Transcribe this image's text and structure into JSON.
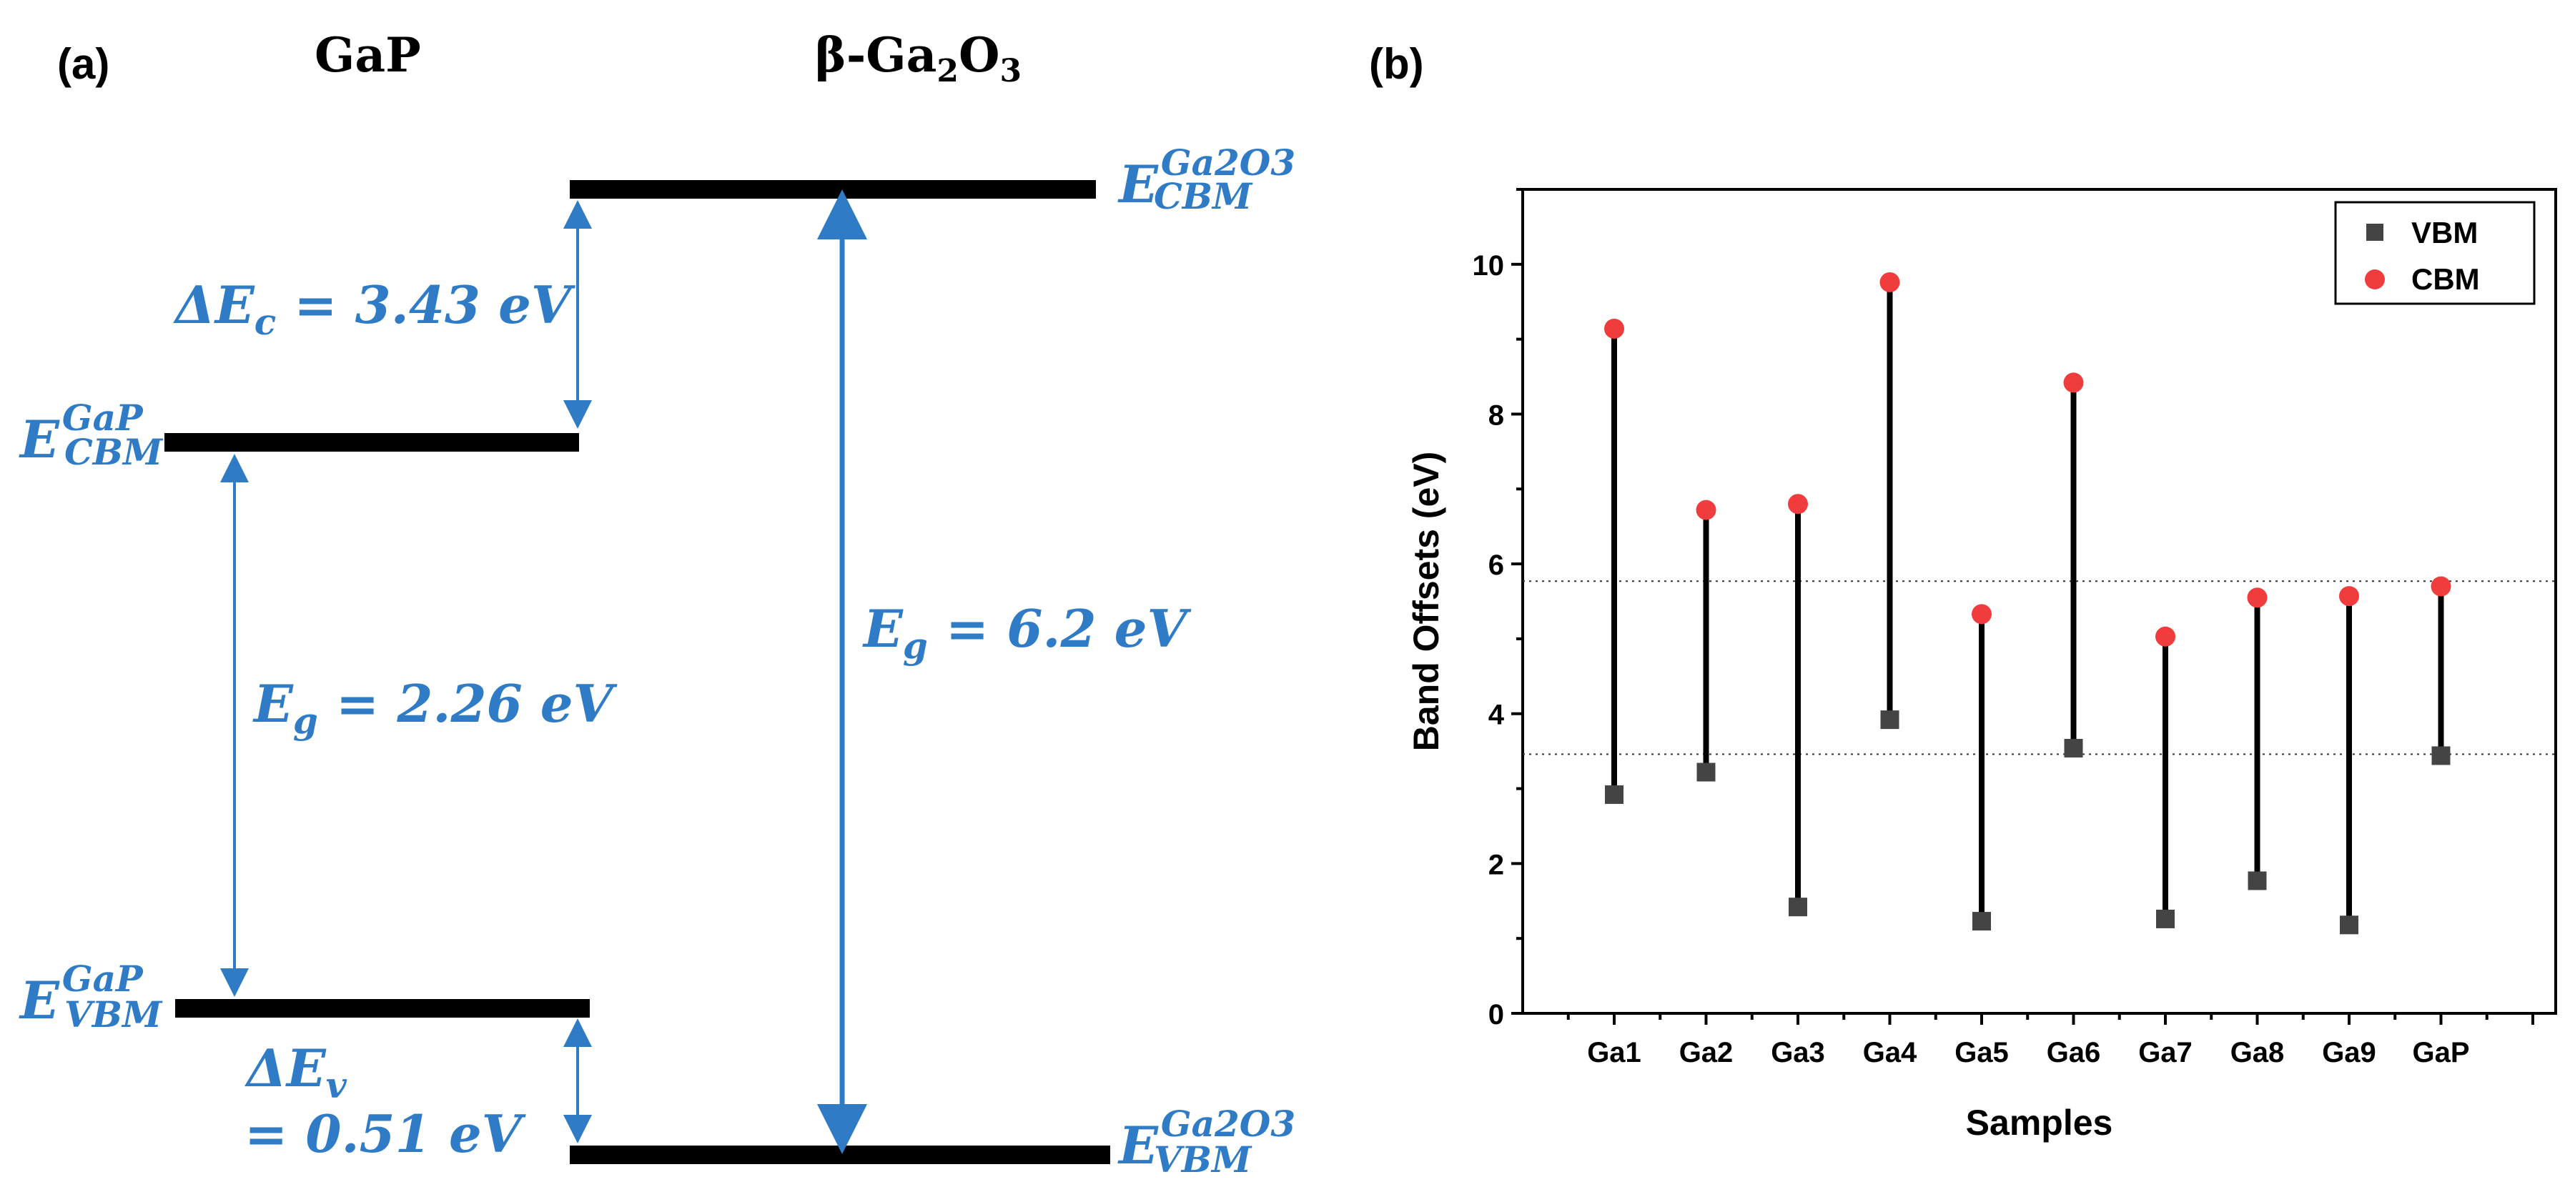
{
  "panel_a": {
    "label": "(a)",
    "title_left": "GaP",
    "title_right_prefix": "β-Ga",
    "title_right_sub1": "2",
    "title_right_mid": "O",
    "title_right_sub2": "3",
    "e_sym": "E",
    "cbm_gap_sup": "GaP",
    "cbm_gap_sub": "CBM",
    "vbm_gap_sup": "GaP",
    "vbm_gap_sub": "VBM",
    "cbm_ga2o3_sup": "Ga2O3",
    "cbm_ga2o3_sub": "CBM",
    "vbm_ga2o3_sup": "Ga2O3",
    "vbm_ga2o3_sub": "VBM",
    "delta_ec_text": "ΔE",
    "delta_ec_sub": "c",
    "delta_ec_value": " = 3.43 eV",
    "eg_gap_text": "E",
    "eg_gap_sub": "g",
    "eg_gap_value": " = 2.26 eV",
    "eg_ga2o3_text": "E",
    "eg_ga2o3_sub": "g",
    "eg_ga2o3_value": " = 6.2 eV",
    "delta_ev_text": "ΔE",
    "delta_ev_sub": "v",
    "delta_ev_value": "= 0.51 eV",
    "colors": {
      "annotation": "#2f7bc6",
      "level": "#000000"
    }
  },
  "panel_b": {
    "label": "(b)"
  },
  "chart_data": {
    "type": "scatter",
    "title": "",
    "xlabel": "Samples",
    "ylabel": "Band Offsets (eV)",
    "categories": [
      "Ga1",
      "Ga2",
      "Ga3",
      "Ga4",
      "Ga5",
      "Ga6",
      "Ga7",
      "Ga8",
      "Ga9",
      "GaP"
    ],
    "ylim": [
      0,
      11
    ],
    "yticks": [
      0,
      2,
      4,
      6,
      8,
      10
    ],
    "series": [
      {
        "name": "VBM",
        "marker": "square",
        "color": "#444444",
        "values": [
          2.92,
          3.22,
          1.42,
          3.92,
          1.23,
          3.54,
          1.26,
          1.77,
          1.18,
          3.44
        ]
      },
      {
        "name": "CBM",
        "marker": "circle",
        "color": "#f03c3c",
        "values": [
          9.14,
          6.72,
          6.8,
          9.76,
          5.33,
          8.42,
          5.03,
          5.55,
          5.57,
          5.7
        ]
      }
    ],
    "reference_lines": [
      5.77,
      3.46
    ],
    "connector_color": "#000000",
    "legend_position": "top-right",
    "grid": false
  }
}
